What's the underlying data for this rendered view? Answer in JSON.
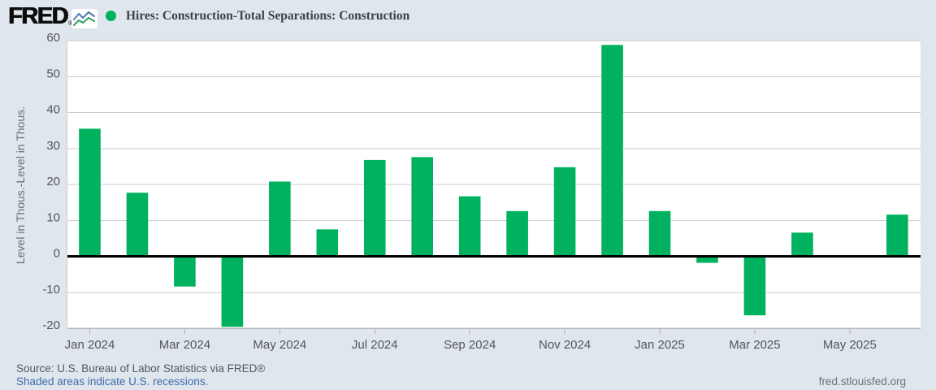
{
  "header": {
    "logo_text": "FRED",
    "logo_registered": "®",
    "title": "Hires: Construction-Total Separations: Construction"
  },
  "chart_data": {
    "type": "bar",
    "title": "Hires: Construction-Total Separations: Construction",
    "ylabel": "Level in Thous.-Level in Thous.",
    "xlabel": "",
    "ylim": [
      -20,
      60
    ],
    "yticks": [
      60,
      50,
      40,
      30,
      20,
      10,
      0,
      -10,
      -20
    ],
    "categories": [
      "Jan 2024",
      "Feb 2024",
      "Mar 2024",
      "Apr 2024",
      "May 2024",
      "Jun 2024",
      "Jul 2024",
      "Aug 2024",
      "Sep 2024",
      "Oct 2024",
      "Nov 2024",
      "Dec 2024",
      "Jan 2025",
      "Feb 2025",
      "Mar 2025",
      "Apr 2025",
      "May 2025",
      "Jun 2025"
    ],
    "values": [
      35.5,
      17.7,
      -8.4,
      -19.6,
      20.8,
      7.5,
      26.8,
      27.6,
      16.7,
      12.6,
      24.8,
      58.8,
      12.6,
      -1.8,
      -16.4,
      6.6,
      0,
      11.6
    ],
    "xticks": [
      "Jan 2024",
      "Mar 2024",
      "May 2024",
      "Jul 2024",
      "Sep 2024",
      "Nov 2024",
      "Jan 2025",
      "Mar 2025",
      "May 2025"
    ],
    "grid": true,
    "legend_position": "top",
    "bar_color": "#00b25f",
    "zero_line_color": "#000000",
    "gridline_color": "#cbcbcb",
    "axis_text_color": "#54565a",
    "plot_background": "#ffffff"
  },
  "footer": {
    "source": "Source: U.S. Bureau of Labor Statistics via FRED®",
    "note": "Shaded areas indicate U.S. recessions.",
    "site": "fred.stlouisfed.org"
  },
  "colors": {
    "page_background": "#dfe6ed",
    "series_green": "#00b25f",
    "link_blue": "#3f6cab",
    "title_text": "#3d4247"
  }
}
